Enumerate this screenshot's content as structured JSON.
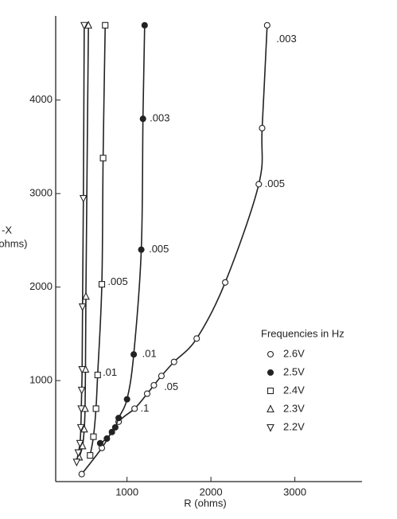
{
  "chart_data": {
    "type": "line",
    "x_label": "R (ohms)",
    "y_label": [
      "-X",
      "(ohms)"
    ],
    "xlim": [
      150,
      3800
    ],
    "ylim": [
      -80,
      4900
    ],
    "xticks": [
      1000,
      2000,
      3000
    ],
    "yticks": [
      1000,
      2000,
      3000,
      4000
    ],
    "grid": false,
    "legend_title": "Frequencies in Hz",
    "legend_position": "lower right",
    "series": [
      {
        "name": "2.6V",
        "marker": "circle-open",
        "color": "#222",
        "x": [
          460,
          700,
          900,
          1090,
          1240,
          1320,
          1410,
          1560,
          1830,
          2170,
          2570,
          2610,
          2670
        ],
        "y": [
          0,
          280,
          560,
          700,
          860,
          950,
          1050,
          1200,
          1450,
          2050,
          3100,
          3700,
          4800
        ]
      },
      {
        "name": "2.5V",
        "marker": "circle-filled",
        "color": "#222",
        "x": [
          680,
          760,
          820,
          860,
          900,
          1000,
          1080,
          1170,
          1190,
          1210
        ],
        "y": [
          330,
          380,
          450,
          500,
          600,
          800,
          1280,
          2400,
          3800,
          4800
        ]
      },
      {
        "name": "2.4V",
        "marker": "square-open",
        "color": "#222",
        "x": [
          560,
          600,
          630,
          650,
          700,
          715,
          740
        ],
        "y": [
          200,
          400,
          700,
          1060,
          2030,
          3380,
          4800
        ]
      },
      {
        "name": "2.3V",
        "marker": "triangle-up",
        "color": "#222",
        "x": [
          430,
          470,
          490,
          500,
          505,
          510,
          540
        ],
        "y": [
          180,
          300,
          480,
          700,
          1120,
          1900,
          4800
        ]
      },
      {
        "name": "2.2V",
        "marker": "triangle-down",
        "color": "#222",
        "x": [
          400,
          420,
          440,
          450,
          455,
          460,
          465,
          470,
          480,
          490
        ],
        "y": [
          130,
          230,
          330,
          500,
          700,
          900,
          1120,
          1790,
          2950,
          4800
        ]
      }
    ],
    "annotations": [
      {
        "text": ".003",
        "x": 2780,
        "y": 4650
      },
      {
        "text": ".005",
        "x": 2640,
        "y": 3100
      },
      {
        "text": ".05",
        "x": 1440,
        "y": 930
      },
      {
        "text": ".1",
        "x": 1160,
        "y": 700
      },
      {
        "text": ".01",
        "x": 1180,
        "y": 1280
      },
      {
        "text": ".005",
        "x": 1260,
        "y": 2400
      },
      {
        "text": ".003",
        "x": 1270,
        "y": 3800
      },
      {
        "text": ".005",
        "x": 770,
        "y": 2050
      },
      {
        "text": ".01",
        "x": 710,
        "y": 1080
      }
    ]
  }
}
